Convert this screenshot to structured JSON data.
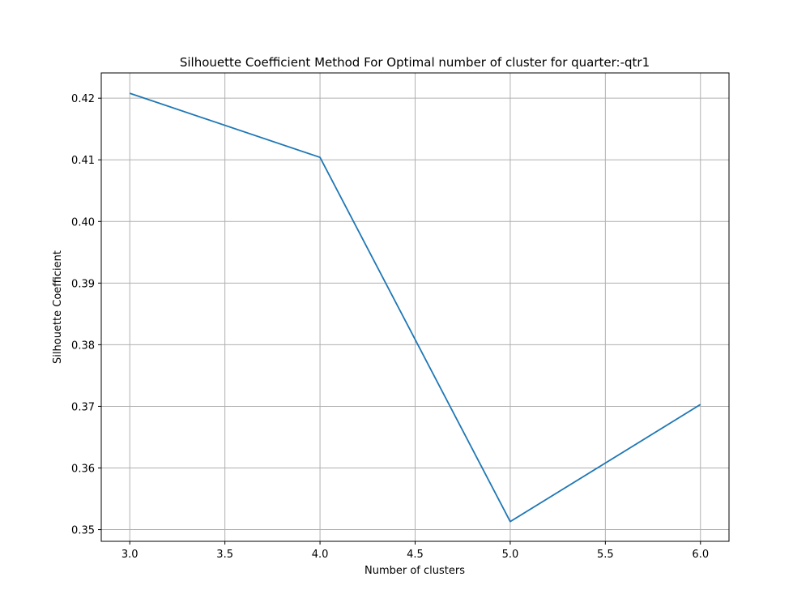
{
  "chart_data": {
    "type": "line",
    "title": "Silhouette Coefficient Method For Optimal number of cluster for quarter:-qtr1",
    "xlabel": "Number of clusters",
    "ylabel": "Silhouette Coefficient",
    "x": [
      3.0,
      4.0,
      5.0,
      6.0
    ],
    "series": [
      {
        "values": [
          0.4208,
          0.4104,
          0.3513,
          0.3703
        ]
      }
    ],
    "xlim": [
      2.85,
      6.15
    ],
    "ylim": [
      0.3481,
      0.4241
    ],
    "xticks": [
      3.0,
      3.5,
      4.0,
      4.5,
      5.0,
      5.5,
      6.0
    ],
    "xtick_labels": [
      "3.0",
      "3.5",
      "4.0",
      "4.5",
      "5.0",
      "5.5",
      "6.0"
    ],
    "yticks": [
      0.35,
      0.36,
      0.37,
      0.38,
      0.39,
      0.4,
      0.41,
      0.42
    ],
    "ytick_labels": [
      "0.35",
      "0.36",
      "0.37",
      "0.38",
      "0.39",
      "0.40",
      "0.41",
      "0.42"
    ],
    "grid": true,
    "colors": {
      "line": "#1f77b4",
      "grid": "#b0b0b0",
      "axes": "#000000"
    }
  }
}
